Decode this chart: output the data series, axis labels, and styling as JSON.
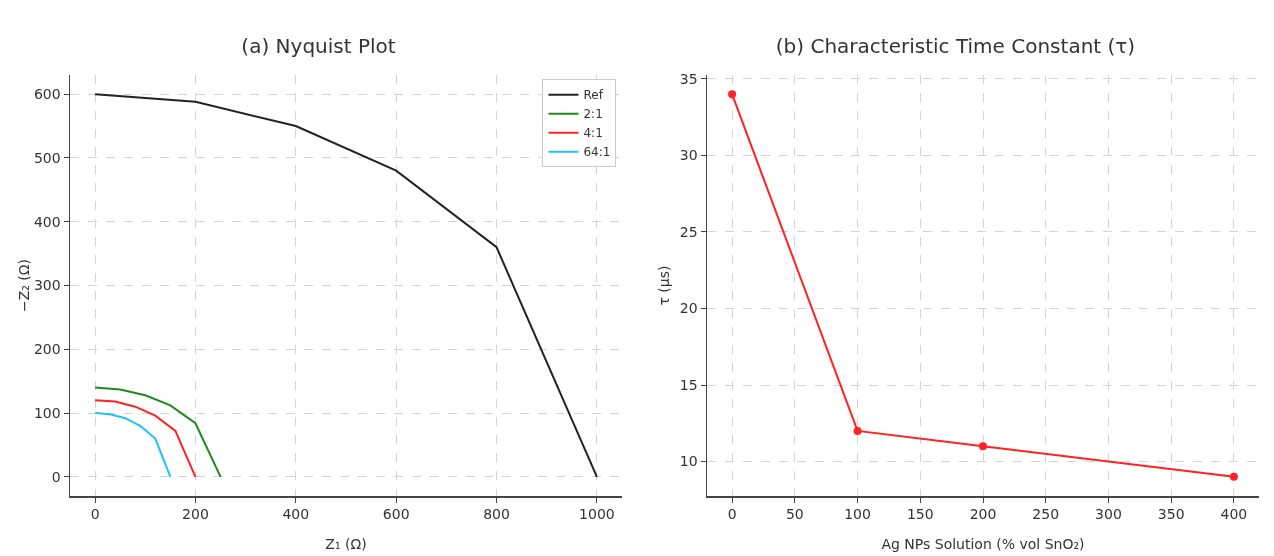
{
  "chart_data": [
    {
      "type": "line",
      "title": "(a) Nyquist Plot",
      "xlabel": "Z₁ (Ω)",
      "ylabel": "−Z₂ (Ω)",
      "xlim": [
        -50,
        1050
      ],
      "xticks": [
        0,
        200,
        400,
        600,
        800,
        1000
      ],
      "ylim": [
        -30,
        630
      ],
      "yticks": [
        0,
        100,
        200,
        300,
        400,
        500,
        600
      ],
      "grid": true,
      "legend": "top right",
      "marker": "none",
      "line_style": "solid",
      "series": [
        {
          "name": "Ref",
          "color": "#222222",
          "x": [
            0,
            200,
            400,
            600,
            800,
            1000
          ],
          "values": [
            600,
            588,
            550,
            480,
            360,
            0
          ]
        },
        {
          "name": "2:1",
          "color": "#1f8a1f",
          "x": [
            0,
            50,
            100,
            150,
            200,
            250
          ],
          "values": [
            140,
            137,
            128,
            112,
            84,
            0
          ]
        },
        {
          "name": "4:1",
          "color": "#ff2222",
          "x": [
            0,
            40,
            80,
            120,
            160,
            200
          ],
          "values": [
            120,
            118,
            110,
            96,
            72,
            0
          ]
        },
        {
          "name": "64:1",
          "color": "#1ec0ff",
          "x": [
            0,
            30,
            60,
            90,
            120,
            150
          ],
          "values": [
            100,
            98,
            92,
            80,
            60,
            0
          ]
        }
      ]
    },
    {
      "type": "line",
      "title": "(b) Characteristic Time Constant (τ)",
      "xlabel": "Ag NPs Solution (% vol SnO₂)",
      "ylabel": "τ (µs)",
      "xlim": [
        -20,
        420
      ],
      "xticks": [
        0,
        50,
        100,
        150,
        200,
        250,
        300,
        350,
        400
      ],
      "ylim": [
        7.75,
        35.25
      ],
      "yticks": [
        10,
        15,
        20,
        25,
        30,
        35
      ],
      "grid": true,
      "legend": false,
      "marker": "circle",
      "line_style": "solid",
      "series": [
        {
          "color": "#ff2222",
          "x": [
            0,
            100,
            200,
            400
          ],
          "values": [
            34,
            12,
            11,
            9
          ]
        }
      ]
    }
  ]
}
